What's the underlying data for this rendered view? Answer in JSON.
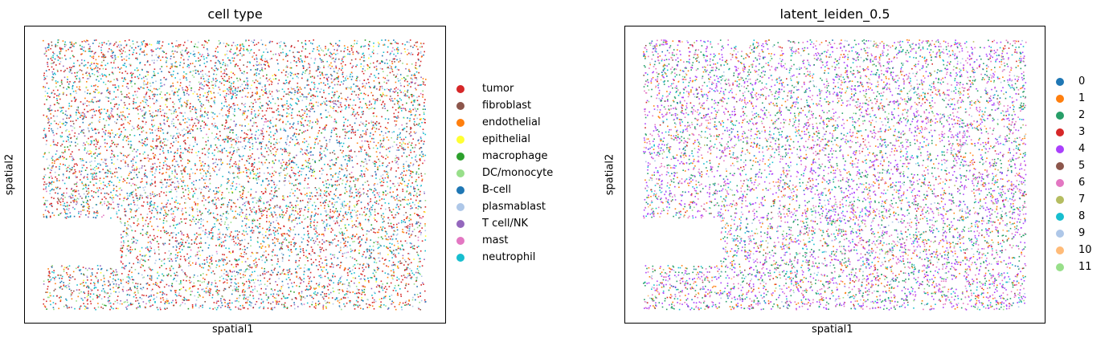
{
  "chart_data": [
    {
      "type": "scatter",
      "title": "cell type",
      "xlabel": "spatial1",
      "ylabel": "spatial2",
      "legend_position": "right",
      "categories": [
        "tumor",
        "fibroblast",
        "endothelial",
        "epithelial",
        "macrophage",
        "DC/monocyte",
        "B-cell",
        "plasmablast",
        "T cell/NK",
        "mast",
        "neutrophil"
      ],
      "colors": [
        "#d62728",
        "#8c564b",
        "#ff7f0e",
        "#ffff33",
        "#2ca02c",
        "#98df8a",
        "#1f77b4",
        "#aec7e8",
        "#9467bd",
        "#e377c2",
        "#17becf"
      ]
    },
    {
      "type": "scatter",
      "title": "latent_leiden_0.5",
      "xlabel": "spatial1",
      "ylabel": "spatial2",
      "legend_position": "right",
      "categories": [
        "0",
        "1",
        "2",
        "3",
        "4",
        "5",
        "6",
        "7",
        "8",
        "9",
        "10",
        "11"
      ],
      "colors": [
        "#1f77b4",
        "#ff7f0e",
        "#279e68",
        "#d62728",
        "#aa40fc",
        "#8c564b",
        "#e377c2",
        "#b5bd61",
        "#17becf",
        "#aec7e8",
        "#ffbb78",
        "#98df8a"
      ]
    }
  ]
}
